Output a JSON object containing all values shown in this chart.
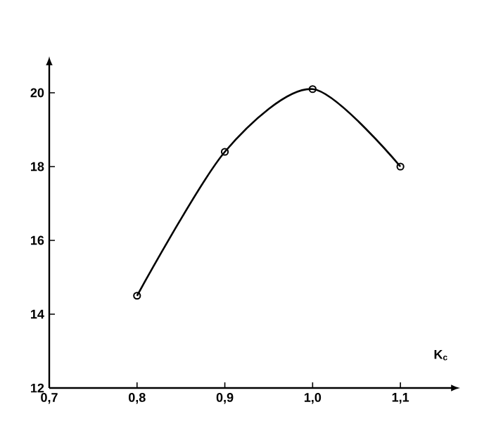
{
  "chart_data": {
    "type": "line",
    "xlabel": "K$_{c}$",
    "x": [
      0.8,
      0.9,
      1.0,
      1.1
    ],
    "series": [
      {
        "color": "#000000",
        "values": [
          14.5,
          18.4,
          20.1,
          18.0
        ]
      }
    ],
    "xlim": [
      0.7,
      1.16
    ],
    "ylim": [
      12,
      20.8
    ],
    "xticks": [
      {
        "value": 0.7,
        "label": "0,7"
      },
      {
        "value": 0.8,
        "label": "0,8"
      },
      {
        "value": 0.9,
        "label": "0,9"
      },
      {
        "value": 1.0,
        "label": "1,0"
      },
      {
        "value": 1.1,
        "label": "1,1"
      }
    ],
    "yticks": [
      12,
      14,
      16,
      18,
      20
    ],
    "marker": "circle"
  }
}
